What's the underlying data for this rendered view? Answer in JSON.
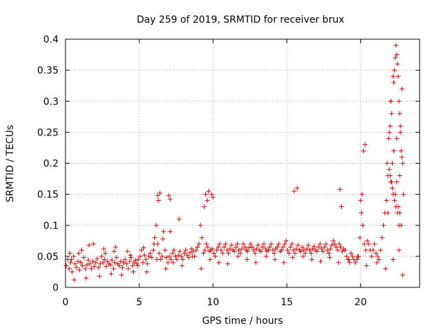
{
  "chart_data": {
    "type": "scatter",
    "title": "Day 259 of 2019, SRMTID for receiver brux",
    "xlabel": "GPS time / hours",
    "ylabel": "SRMTID / TECUs",
    "xlim": [
      0,
      24
    ],
    "ylim": [
      0,
      0.4
    ],
    "xticks": [
      0,
      5,
      10,
      15,
      20
    ],
    "xtick_labels": [
      "0",
      "5",
      "10",
      "15",
      "20"
    ],
    "yticks": [
      0,
      0.05,
      0.1,
      0.15,
      0.2,
      0.25,
      0.3,
      0.35,
      0.4
    ],
    "ytick_labels": [
      "0",
      "0.05",
      "0.1",
      "0.15",
      "0.2",
      "0.25",
      "0.3",
      "0.35",
      "0.4"
    ],
    "grid": true,
    "marker": "+",
    "series": [
      {
        "name": "SRMTID",
        "color": "#e00000",
        "x": [
          0.05,
          0.15,
          0.25,
          0.35,
          0.45,
          0.55,
          0.65,
          0.75,
          0.85,
          0.95,
          1.05,
          1.15,
          1.25,
          1.35,
          1.45,
          1.55,
          1.65,
          1.75,
          1.85,
          1.95,
          2.05,
          2.15,
          2.25,
          2.35,
          2.45,
          2.55,
          2.65,
          2.75,
          2.85,
          2.95,
          3.05,
          3.15,
          3.25,
          3.35,
          3.45,
          3.55,
          3.65,
          3.75,
          3.85,
          3.95,
          4.05,
          4.15,
          4.25,
          4.35,
          4.45,
          4.55,
          4.65,
          4.75,
          4.85,
          4.95,
          5.05,
          5.15,
          5.25,
          5.35,
          5.45,
          5.55,
          5.65,
          5.75,
          5.85,
          5.95,
          6.05,
          6.15,
          6.25,
          6.35,
          6.45,
          6.55,
          6.65,
          6.75,
          6.85,
          6.95,
          7.05,
          7.15,
          7.25,
          7.35,
          7.45,
          7.55,
          7.65,
          7.75,
          7.85,
          7.95,
          8.05,
          8.15,
          8.25,
          8.35,
          8.45,
          8.55,
          8.65,
          8.75,
          8.85,
          8.95,
          9.05,
          9.15,
          9.25,
          9.35,
          9.45,
          9.55,
          9.65,
          9.75,
          9.85,
          9.95,
          10.05,
          10.15,
          10.25,
          10.35,
          10.45,
          10.55,
          10.65,
          10.75,
          10.85,
          10.95,
          11.05,
          11.15,
          11.25,
          11.35,
          11.45,
          11.55,
          11.65,
          11.75,
          11.85,
          11.95,
          12.05,
          12.15,
          12.25,
          12.35,
          12.45,
          12.55,
          12.65,
          12.75,
          12.85,
          12.95,
          13.05,
          13.15,
          13.25,
          13.35,
          13.45,
          13.55,
          13.65,
          13.75,
          13.85,
          13.95,
          14.05,
          14.15,
          14.25,
          14.35,
          14.45,
          14.55,
          14.65,
          14.75,
          14.85,
          14.95,
          15.05,
          15.15,
          15.25,
          15.35,
          15.45,
          15.55,
          15.65,
          15.75,
          15.85,
          15.95,
          16.05,
          16.15,
          16.25,
          16.35,
          16.45,
          16.55,
          16.65,
          16.75,
          16.85,
          16.95,
          17.05,
          17.15,
          17.25,
          17.35,
          17.45,
          17.55,
          17.65,
          17.75,
          17.85,
          17.95,
          18.05,
          18.15,
          18.25,
          18.35,
          18.45,
          18.55,
          18.65,
          18.75,
          18.85,
          18.95,
          19.05,
          19.15,
          19.25,
          19.35,
          19.45,
          19.55,
          19.65,
          19.75,
          19.85,
          19.95,
          20.05,
          20.15,
          20.25,
          20.35,
          20.45,
          20.55,
          20.65,
          20.75,
          20.85,
          20.95,
          21.05,
          21.15,
          21.25,
          21.35,
          21.45,
          21.55,
          21.65,
          21.75,
          21.85,
          21.95,
          22.05,
          22.15,
          22.25,
          22.35,
          22.45,
          22.55,
          22.65,
          22.75,
          22.85,
          0.3,
          0.6,
          1.1,
          1.4,
          1.9,
          2.3,
          2.7,
          3.1,
          3.4,
          3.8,
          4.2,
          4.6,
          4.9,
          5.5,
          6.2,
          6.8,
          7.3,
          7.9,
          8.6,
          9.2,
          9.8,
          10.4,
          11.0,
          11.7,
          12.3,
          12.9,
          13.6,
          14.2,
          14.8,
          15.4,
          16.1,
          16.7,
          17.3,
          17.9,
          18.5,
          19.2,
          19.8,
          20.4,
          21.1,
          21.7,
          22.2,
          22.6,
          0.4,
          0.9,
          1.6,
          2.6,
          3.3,
          4.4,
          5.3,
          6.0,
          6.6,
          7.1,
          7.7,
          9.4,
          9.6,
          9.9,
          10.0,
          6.25,
          6.3,
          6.4,
          7.0,
          7.1,
          9.5,
          9.7,
          15.5,
          15.7,
          18.6,
          18.7,
          20.0,
          20.1,
          20.2,
          20.3,
          21.8,
          21.9,
          22.0,
          22.05,
          22.1,
          22.2,
          22.25,
          22.3,
          22.35,
          22.4,
          22.45,
          22.5,
          22.55,
          22.6,
          22.65,
          22.7,
          22.75,
          22.8,
          21.95,
          22.0,
          22.1,
          22.15,
          22.2,
          22.3,
          22.4,
          22.5,
          22.6,
          22.7,
          22.8,
          22.85,
          22.9,
          21.85,
          22.05,
          22.25,
          22.45,
          22.65
        ],
        "y": [
          0.035,
          0.045,
          0.03,
          0.04,
          0.025,
          0.05,
          0.038,
          0.032,
          0.042,
          0.028,
          0.04,
          0.035,
          0.048,
          0.03,
          0.036,
          0.044,
          0.038,
          0.03,
          0.042,
          0.034,
          0.04,
          0.046,
          0.032,
          0.038,
          0.05,
          0.04,
          0.045,
          0.034,
          0.042,
          0.038,
          0.036,
          0.044,
          0.03,
          0.04,
          0.048,
          0.038,
          0.035,
          0.042,
          0.032,
          0.04,
          0.045,
          0.038,
          0.03,
          0.042,
          0.048,
          0.035,
          0.04,
          0.044,
          0.038,
          0.045,
          0.05,
          0.06,
          0.04,
          0.052,
          0.045,
          0.038,
          0.05,
          0.055,
          0.048,
          0.06,
          0.08,
          0.1,
          0.07,
          0.055,
          0.045,
          0.05,
          0.09,
          0.06,
          0.048,
          0.04,
          0.05,
          0.045,
          0.055,
          0.06,
          0.05,
          0.045,
          0.052,
          0.058,
          0.05,
          0.045,
          0.055,
          0.06,
          0.052,
          0.048,
          0.056,
          0.062,
          0.058,
          0.05,
          0.06,
          0.065,
          0.07,
          0.1,
          0.08,
          0.055,
          0.06,
          0.07,
          0.065,
          0.058,
          0.06,
          0.062,
          0.055,
          0.05,
          0.06,
          0.065,
          0.07,
          0.06,
          0.055,
          0.065,
          0.07,
          0.06,
          0.055,
          0.062,
          0.068,
          0.06,
          0.058,
          0.065,
          0.07,
          0.06,
          0.055,
          0.062,
          0.07,
          0.065,
          0.06,
          0.058,
          0.064,
          0.07,
          0.065,
          0.06,
          0.055,
          0.062,
          0.068,
          0.06,
          0.058,
          0.065,
          0.07,
          0.062,
          0.058,
          0.06,
          0.065,
          0.07,
          0.06,
          0.055,
          0.062,
          0.065,
          0.07,
          0.058,
          0.06,
          0.065,
          0.07,
          0.075,
          0.06,
          0.055,
          0.065,
          0.07,
          0.06,
          0.055,
          0.062,
          0.068,
          0.06,
          0.058,
          0.065,
          0.06,
          0.055,
          0.062,
          0.068,
          0.06,
          0.055,
          0.062,
          0.066,
          0.06,
          0.058,
          0.065,
          0.07,
          0.062,
          0.058,
          0.065,
          0.07,
          0.06,
          0.055,
          0.062,
          0.068,
          0.075,
          0.07,
          0.065,
          0.06,
          0.07,
          0.065,
          0.058,
          0.062,
          0.06,
          0.05,
          0.045,
          0.04,
          0.055,
          0.05,
          0.045,
          0.04,
          0.045,
          0.05,
          0.08,
          0.12,
          0.1,
          0.07,
          0.06,
          0.075,
          0.07,
          0.06,
          0.05,
          0.06,
          0.07,
          0.055,
          0.05,
          0.045,
          0.06,
          0.08,
          0.1,
          0.12,
          0.14,
          0.18,
          0.25,
          0.3,
          0.2,
          0.22,
          0.15,
          0.17,
          0.13,
          0.12,
          0.1,
          0.02,
          0.055,
          0.012,
          0.06,
          0.015,
          0.07,
          0.018,
          0.055,
          0.022,
          0.065,
          0.02,
          0.058,
          0.025,
          0.035,
          0.025,
          0.045,
          0.03,
          0.04,
          0.035,
          0.05,
          0.03,
          0.045,
          0.04,
          0.038,
          0.05,
          0.045,
          0.04,
          0.05,
          0.045,
          0.04,
          0.048,
          0.05,
          0.045,
          0.042,
          0.048,
          0.04,
          0.045,
          0.05,
          0.035,
          0.04,
          0.03,
          0.045,
          0.06,
          0.045,
          0.055,
          0.068,
          0.062,
          0.058,
          0.052,
          0.064,
          0.07,
          0.078,
          0.09,
          0.11,
          0.13,
          0.14,
          0.15,
          0.145,
          0.148,
          0.14,
          0.152,
          0.148,
          0.142,
          0.15,
          0.155,
          0.155,
          0.16,
          0.158,
          0.13,
          0.14,
          0.15,
          0.22,
          0.23,
          0.2,
          0.24,
          0.26,
          0.3,
          0.28,
          0.34,
          0.33,
          0.35,
          0.37,
          0.39,
          0.375,
          0.36,
          0.34,
          0.3,
          0.28,
          0.25,
          0.22,
          0.21,
          0.19,
          0.18,
          0.17,
          0.16,
          0.15,
          0.14,
          0.13,
          0.12,
          0.1,
          0.26,
          0.32,
          0.2,
          0.15,
          0.12,
          0.17,
          0.22,
          0.24,
          0.18
        ]
      }
    ]
  }
}
